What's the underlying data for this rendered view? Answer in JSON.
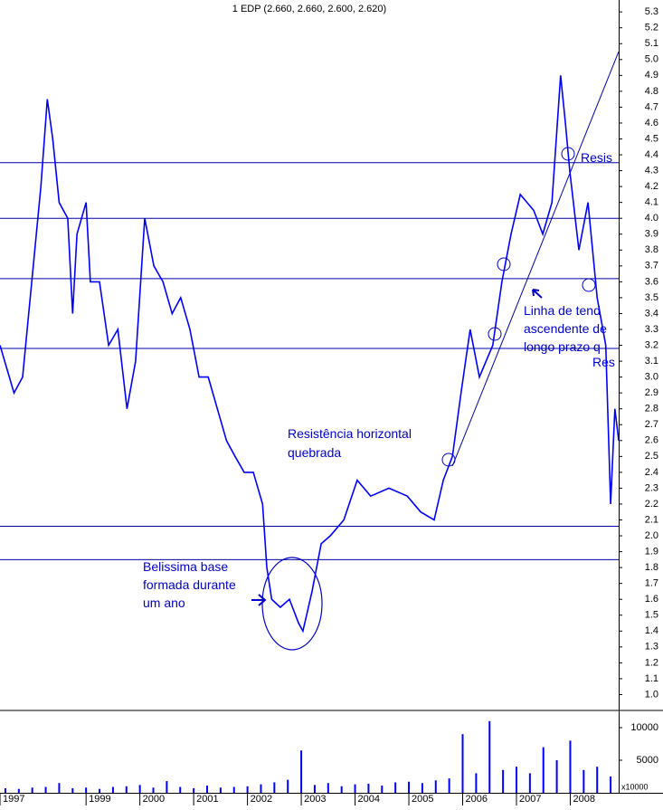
{
  "chart_data": {
    "type": "line",
    "title": "1 EDP (2.660, 2.660, 2.600, 2.620)",
    "xlim": [
      1997.4,
      2008.9
    ],
    "xticks": [
      {
        "value": 1997.4,
        "label": "1997"
      },
      1999,
      2000,
      2001,
      2002,
      2003,
      2004,
      2005,
      2006,
      2007,
      2008
    ],
    "ylim": [
      0.9,
      5.375
    ],
    "yticks": [
      5.3,
      5.2,
      5.1,
      {
        "value": 5,
        "label": "5.0"
      },
      4.9,
      4.8,
      4.7,
      4.6,
      4.5,
      4.4,
      4.3,
      4.2,
      4.1,
      {
        "value": 4,
        "label": "4.0"
      },
      3.9,
      3.8,
      3.7,
      3.6,
      3.5,
      3.4,
      3.3,
      3.2,
      3.1,
      {
        "value": 3,
        "label": "3.0"
      },
      2.9,
      2.8,
      2.7,
      2.6,
      2.5,
      2.4,
      2.3,
      2.2,
      2.1,
      {
        "value": 2,
        "label": "2.0"
      },
      1.9,
      1.8,
      1.7,
      1.6,
      1.5,
      1.4,
      1.3,
      1.2,
      1.1,
      {
        "value": 1,
        "label": "1.0"
      }
    ],
    "series": [
      {
        "name": "EDP",
        "color": "#0000ff",
        "x": [
          1997.4,
          1997.66,
          1997.82,
          1997.99,
          1998.16,
          1998.28,
          1998.38,
          1998.5,
          1998.66,
          1998.75,
          1998.83,
          1999.0,
          1999.08,
          1999.25,
          1999.42,
          1999.59,
          1999.76,
          1999.92,
          2000.09,
          2000.26,
          2000.43,
          2000.6,
          2000.76,
          2000.93,
          2001.1,
          2001.27,
          2001.44,
          2001.61,
          2001.77,
          2001.94,
          2002.11,
          2002.28,
          2002.36,
          2002.45,
          2002.61,
          2002.78,
          2002.95,
          2003.03,
          2003.2,
          2003.37,
          2003.54,
          2003.79,
          2004.04,
          2004.29,
          2004.63,
          2004.97,
          2005.22,
          2005.47,
          2005.64,
          2005.81,
          2005.97,
          2006.14,
          2006.31,
          2006.56,
          2006.73,
          2006.9,
          2007.07,
          2007.32,
          2007.49,
          2007.66,
          2007.82,
          2007.91,
          2007.99,
          2008.16,
          2008.33,
          2008.5,
          2008.66,
          2008.75,
          2008.83,
          2008.9
        ],
        "values": [
          3.2,
          2.9,
          3.0,
          3.6,
          4.2,
          4.75,
          4.5,
          4.1,
          4.0,
          3.4,
          3.9,
          4.1,
          3.6,
          3.6,
          3.2,
          3.3,
          2.8,
          3.1,
          4.0,
          3.7,
          3.6,
          3.4,
          3.5,
          3.3,
          3.0,
          3.0,
          2.8,
          2.6,
          2.5,
          2.4,
          2.4,
          2.2,
          1.8,
          1.6,
          1.55,
          1.6,
          1.45,
          1.4,
          1.65,
          1.95,
          2.0,
          2.1,
          2.35,
          2.25,
          2.3,
          2.25,
          2.15,
          2.1,
          2.35,
          2.5,
          2.9,
          3.3,
          3.0,
          3.2,
          3.6,
          3.9,
          4.15,
          4.05,
          3.9,
          4.1,
          4.9,
          4.6,
          4.3,
          3.8,
          4.1,
          3.5,
          3.2,
          2.2,
          2.8,
          2.6
        ]
      }
    ],
    "resistance_levels": [
      4.35,
      4.0,
      3.62,
      3.18,
      2.06,
      1.85
    ],
    "trendline": {
      "x": [
        2005.81,
        2008.9
      ],
      "values": [
        2.44,
        5.05
      ]
    },
    "volume": {
      "x": [
        1997.5,
        1997.75,
        1998.0,
        1998.25,
        1998.5,
        1998.75,
        1999.0,
        1999.25,
        1999.5,
        1999.75,
        2000.0,
        2000.25,
        2000.5,
        2000.75,
        2001.0,
        2001.25,
        2001.5,
        2001.75,
        2002.0,
        2002.25,
        2002.5,
        2002.75,
        2003.0,
        2003.25,
        2003.5,
        2003.75,
        2004.0,
        2004.25,
        2004.5,
        2004.75,
        2005.0,
        2005.25,
        2005.5,
        2005.75,
        2006.0,
        2006.25,
        2006.5,
        2006.75,
        2007.0,
        2007.25,
        2007.5,
        2007.75,
        2008.0,
        2008.25,
        2008.5,
        2008.75
      ],
      "values": [
        700,
        600,
        800,
        900,
        1500,
        700,
        800,
        600,
        900,
        1000,
        1200,
        800,
        1800,
        900,
        700,
        1100,
        800,
        900,
        1000,
        1300,
        1600,
        2000,
        6500,
        1200,
        1500,
        1000,
        1300,
        1400,
        1100,
        1600,
        1700,
        1500,
        1900,
        2200,
        9000,
        3000,
        11000,
        3500,
        4000,
        3000,
        7000,
        5000,
        8000,
        3500,
        4000,
        2500
      ],
      "ylim": [
        0,
        12500
      ],
      "yticks": [
        5000,
        10000
      ],
      "unit_label": "x10000"
    },
    "annotations": [
      "Resistência horizontal",
      "quebrada",
      "Belissima base",
      "formada durante",
      "um ano",
      "Linha de tend",
      "ascendente de",
      "longo prazo q",
      "Res",
      "Resis"
    ]
  }
}
